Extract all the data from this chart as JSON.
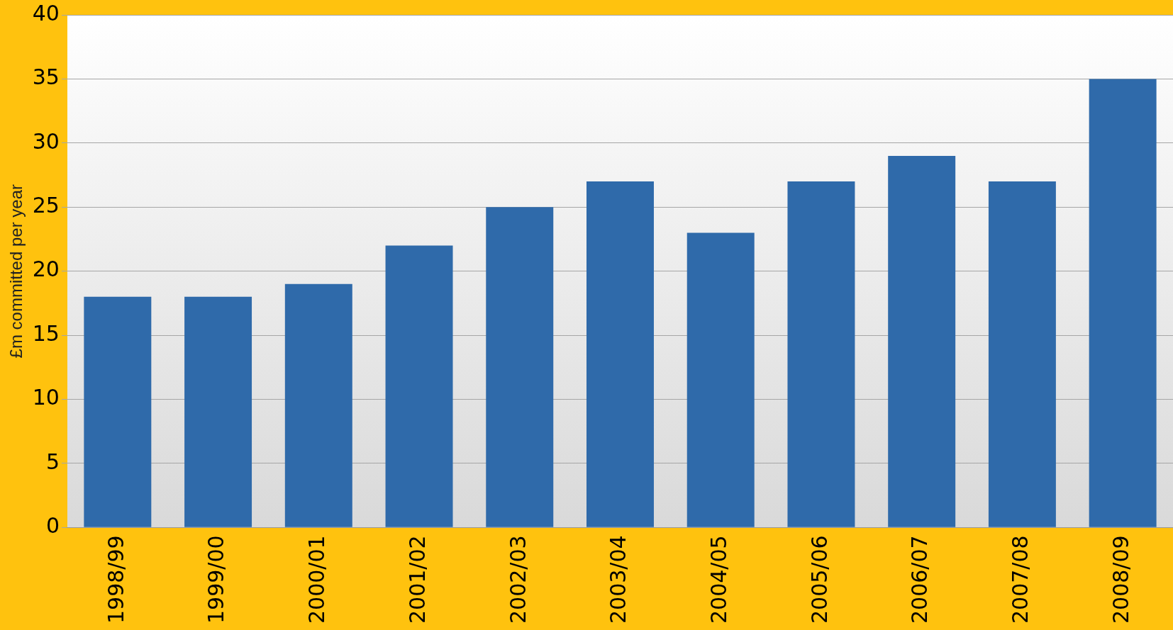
{
  "chart_data": {
    "type": "bar",
    "ylabel": "£m committed per year",
    "categories": [
      "1998/99",
      "1999/00",
      "2000/01",
      "2001/02",
      "2002/03",
      "2003/04",
      "2004/05",
      "2005/06",
      "2006/07",
      "2007/08",
      "2008/09"
    ],
    "values": [
      18,
      18,
      19,
      22,
      25,
      27,
      23,
      27,
      29,
      27,
      35
    ],
    "color": "#2f6aaa",
    "ylim": [
      0,
      40
    ],
    "yticks": [
      0,
      5,
      10,
      15,
      20,
      25,
      30,
      35,
      40
    ],
    "grid": "y",
    "legend": false
  }
}
